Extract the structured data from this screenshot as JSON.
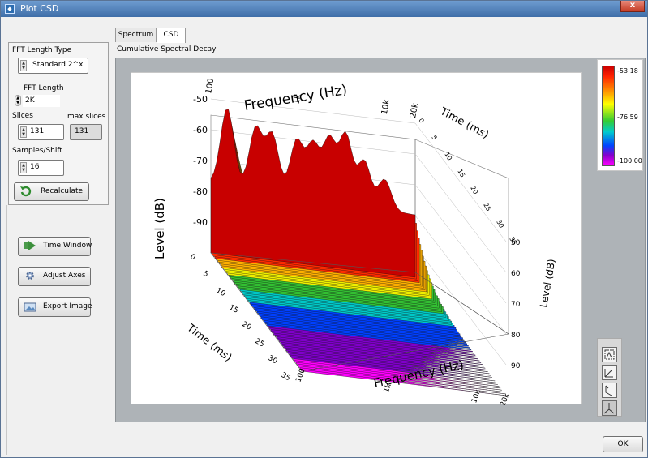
{
  "window": {
    "title": "Plot CSD",
    "close_label": "x"
  },
  "tabs": [
    {
      "label": "Spectrum",
      "active": false
    },
    {
      "label": "CSD",
      "active": true
    }
  ],
  "section_title": "Cumulative Spectral Decay",
  "controls": {
    "fft_length_type_label": "FFT Length Type",
    "fft_length_type_value": "Standard 2^x",
    "fft_length_label": "FFT Length",
    "fft_length_value": "2K",
    "slices_label": "Slices",
    "slices_value": "131",
    "max_slices_label": "max slices",
    "max_slices_value": "131",
    "samples_shift_label": "Samples/Shift",
    "samples_shift_value": "16",
    "recalculate_label": "Recalculate"
  },
  "actions": {
    "time_window": "Time Window",
    "adjust_axes": "Adjust Axes",
    "export_image": "Export Image"
  },
  "legend": {
    "max": "-53.18",
    "mid": "-76.59",
    "min": "-100.00"
  },
  "ok_label": "OK",
  "chart_data": {
    "type": "waterfall-3d",
    "title": "",
    "x_axis": {
      "label": "Frequency (Hz)",
      "scale": "log",
      "ticks": [
        "100",
        "1k",
        "10k",
        "20k"
      ]
    },
    "y_axis": {
      "label": "Time (ms)",
      "ticks": [
        "0",
        "5",
        "10",
        "15",
        "20",
        "25",
        "30",
        "35"
      ]
    },
    "z_axis": {
      "label": "Level (dB)",
      "ticks": [
        "-50",
        "-60",
        "-70",
        "-80",
        "-90"
      ],
      "range": [
        -100,
        -50
      ]
    },
    "colorbar": {
      "range": [
        -100.0,
        -53.18
      ],
      "labels": [
        "-53.18",
        "-76.59",
        "-100.00"
      ]
    },
    "slices": 131
  }
}
